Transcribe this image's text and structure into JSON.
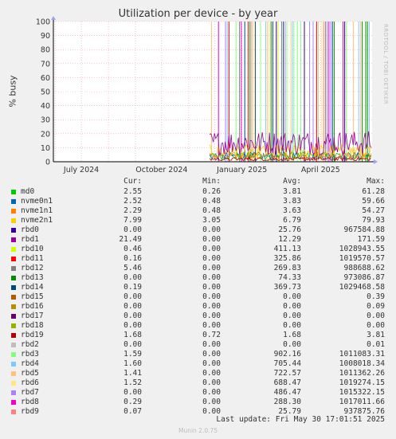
{
  "chart_data": {
    "type": "line",
    "title": "Utilization per device - by year",
    "ylabel": "% busy",
    "ylim": [
      0,
      100
    ],
    "yticks": [
      0,
      10,
      20,
      30,
      40,
      50,
      60,
      70,
      80,
      90,
      100
    ],
    "xlim": [
      "2024-05-30",
      "2025-05-30"
    ],
    "xticks": [
      {
        "date": "2024-07-01",
        "label": "July 2024"
      },
      {
        "date": "2024-10-01",
        "label": "October 2024"
      },
      {
        "date": "2025-01-01",
        "label": "January 2025"
      },
      {
        "date": "2025-04-01",
        "label": "April 2025"
      }
    ],
    "data_start": "2024-11-25",
    "grid": true,
    "columns": [
      "Cur:",
      "Min:",
      "Avg:",
      "Max:"
    ],
    "series": [
      {
        "name": "md0",
        "color": "#00cc00",
        "cur": "2.55",
        "min": "0.26",
        "avg": "3.81",
        "max": "61.28"
      },
      {
        "name": "nvme0n1",
        "color": "#0066b3",
        "cur": "2.52",
        "min": "0.48",
        "avg": "3.83",
        "max": "59.66"
      },
      {
        "name": "nvme1n1",
        "color": "#ff8000",
        "cur": "2.29",
        "min": "0.48",
        "avg": "3.63",
        "max": "54.27"
      },
      {
        "name": "nvme2n1",
        "color": "#ffcc00",
        "cur": "7.99",
        "min": "3.05",
        "avg": "6.79",
        "max": "79.93"
      },
      {
        "name": "rbd0",
        "color": "#330099",
        "cur": "0.00",
        "min": "0.00",
        "avg": "25.76",
        "max": "967584.88"
      },
      {
        "name": "rbd1",
        "color": "#990099",
        "cur": "21.49",
        "min": "0.00",
        "avg": "12.29",
        "max": "171.59"
      },
      {
        "name": "rbd10",
        "color": "#ccff00",
        "cur": "0.46",
        "min": "0.00",
        "avg": "411.13",
        "max": "1028943.55"
      },
      {
        "name": "rbd11",
        "color": "#ff0000",
        "cur": "0.16",
        "min": "0.00",
        "avg": "325.86",
        "max": "1019570.57"
      },
      {
        "name": "rbd12",
        "color": "#808080",
        "cur": "5.46",
        "min": "0.00",
        "avg": "269.83",
        "max": "988688.62"
      },
      {
        "name": "rbd13",
        "color": "#008f00",
        "cur": "0.00",
        "min": "0.00",
        "avg": "74.33",
        "max": "973086.87"
      },
      {
        "name": "rbd14",
        "color": "#00487d",
        "cur": "0.19",
        "min": "0.00",
        "avg": "369.73",
        "max": "1029468.58"
      },
      {
        "name": "rbd15",
        "color": "#b35a00",
        "cur": "0.00",
        "min": "0.00",
        "avg": "0.00",
        "max": "0.39"
      },
      {
        "name": "rbd16",
        "color": "#b38f00",
        "cur": "0.00",
        "min": "0.00",
        "avg": "0.00",
        "max": "0.09"
      },
      {
        "name": "rbd17",
        "color": "#6b006b",
        "cur": "0.00",
        "min": "0.00",
        "avg": "0.00",
        "max": "0.00"
      },
      {
        "name": "rbd18",
        "color": "#8fb300",
        "cur": "0.00",
        "min": "0.00",
        "avg": "0.00",
        "max": "0.00"
      },
      {
        "name": "rbd19",
        "color": "#b30000",
        "cur": "1.68",
        "min": "0.72",
        "avg": "1.68",
        "max": "3.81"
      },
      {
        "name": "rbd2",
        "color": "#bebebe",
        "cur": "0.00",
        "min": "0.00",
        "avg": "0.00",
        "max": "0.01"
      },
      {
        "name": "rbd3",
        "color": "#80ff80",
        "cur": "1.59",
        "min": "0.00",
        "avg": "902.16",
        "max": "1011083.31"
      },
      {
        "name": "rbd4",
        "color": "#80c9ff",
        "cur": "1.60",
        "min": "0.00",
        "avg": "705.44",
        "max": "1008018.34"
      },
      {
        "name": "rbd5",
        "color": "#ffc080",
        "cur": "1.41",
        "min": "0.00",
        "avg": "722.57",
        "max": "1011362.26"
      },
      {
        "name": "rbd6",
        "color": "#ffe680",
        "cur": "1.52",
        "min": "0.00",
        "avg": "688.47",
        "max": "1019274.15"
      },
      {
        "name": "rbd7",
        "color": "#aa80ff",
        "cur": "0.00",
        "min": "0.00",
        "avg": "486.47",
        "max": "1015322.15"
      },
      {
        "name": "rbd8",
        "color": "#ee00cc",
        "cur": "0.29",
        "min": "0.00",
        "avg": "288.30",
        "max": "1017011.66"
      },
      {
        "name": "rbd9",
        "color": "#ff8080",
        "cur": "0.07",
        "min": "0.00",
        "avg": "25.79",
        "max": "937875.76"
      }
    ]
  },
  "footer": {
    "last_update": "Last update:  Fri May 30 17:01:51 2025",
    "version": "Munin 2.0.75",
    "watermark": "RRDTOOL / TOBI OETIKER"
  }
}
